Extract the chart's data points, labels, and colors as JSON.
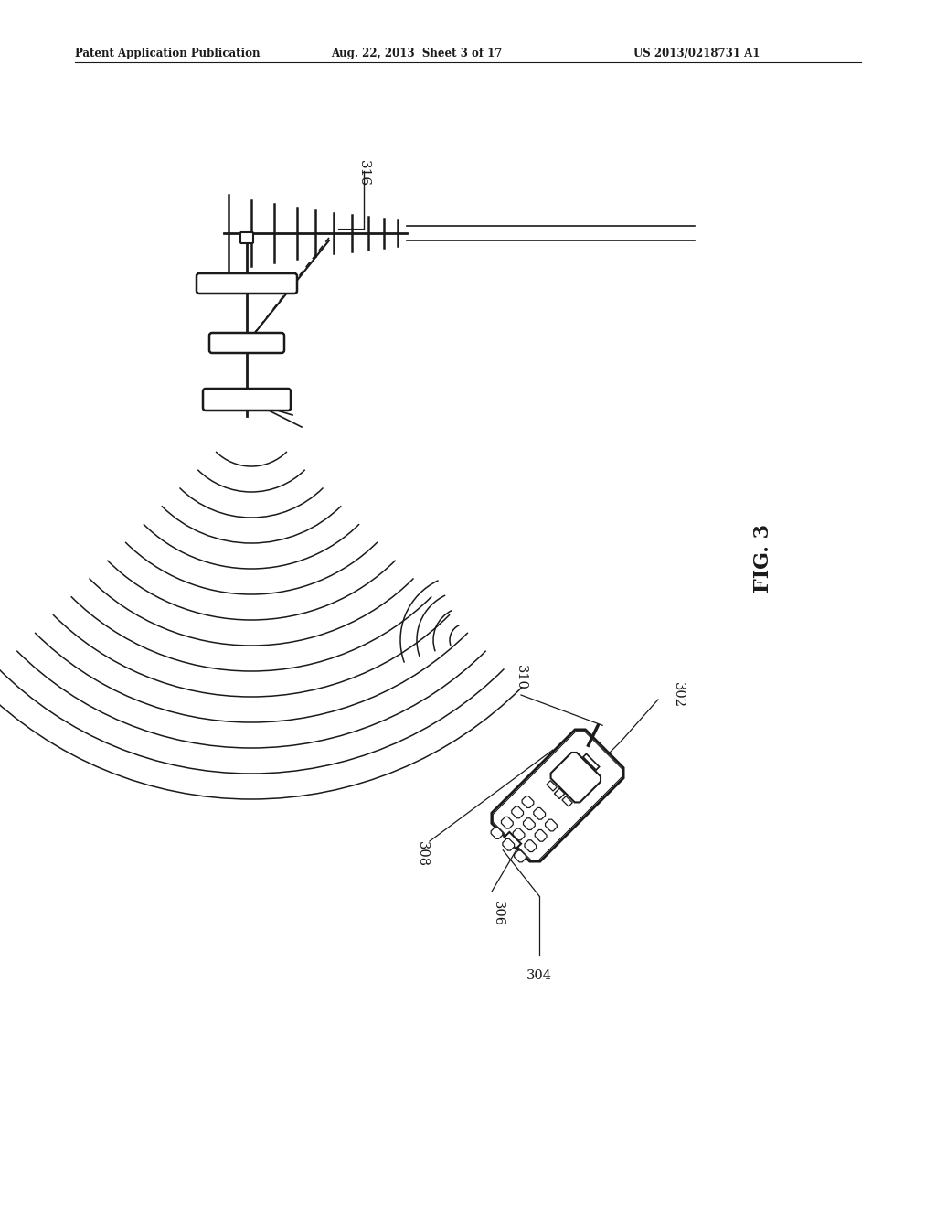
{
  "title_left": "Patent Application Publication",
  "title_center": "Aug. 22, 2013  Sheet 3 of 17",
  "title_right": "US 2013/0218731 A1",
  "fig_label": "FIG. 3",
  "antenna_label": "316",
  "phone_labels": [
    "302",
    "304",
    "306",
    "308",
    "310"
  ],
  "bg_color": "#ffffff",
  "line_color": "#1a1a1a",
  "line_width": 1.5
}
